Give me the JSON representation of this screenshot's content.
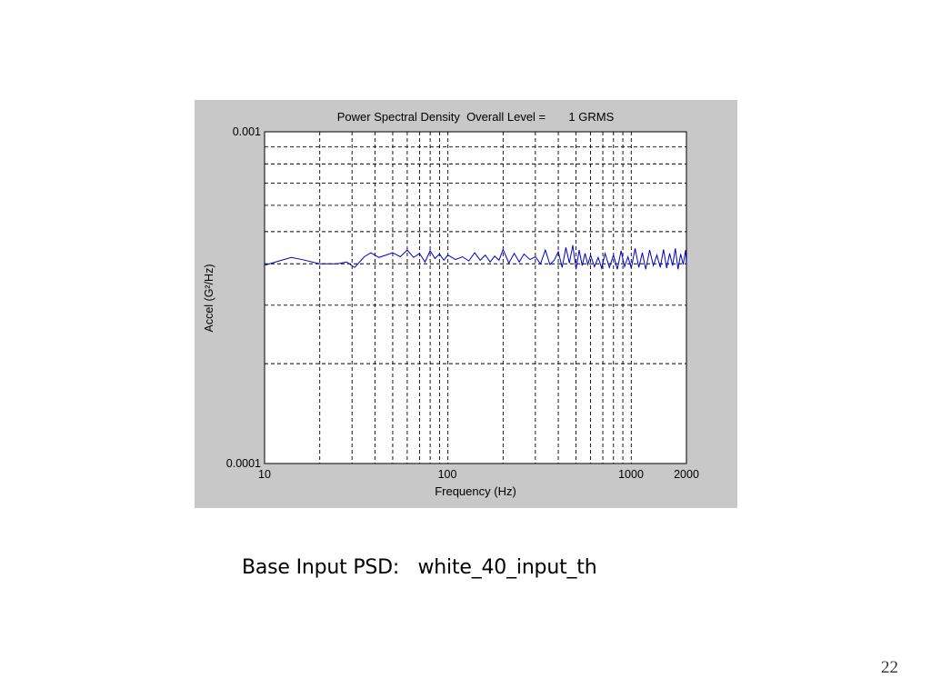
{
  "slide": {
    "caption_label": "Base Input PSD:",
    "caption_value": "white_40_input_th",
    "page_number": "22"
  },
  "colors": {
    "panel_bg": "#c8c8c8",
    "plot_bg": "#ffffff",
    "grid": "#000000",
    "series": "#0000cc"
  },
  "chart_data": {
    "type": "line",
    "title": "Power Spectral Density  Overall Level =       1 GRMS",
    "xlabel": "Frequency (Hz)",
    "ylabel": "Accel (G²/Hz)",
    "x_scale": "log",
    "y_scale": "log",
    "xlim": [
      10,
      2000
    ],
    "ylim": [
      0.0001,
      0.001
    ],
    "x_tick_labels": [
      "10",
      "100",
      "1000",
      "2000"
    ],
    "y_tick_labels": [
      "0.0001",
      "0.001"
    ],
    "grid": true,
    "legend": "none",
    "series": [
      {
        "x": [
          10,
          12,
          14,
          16,
          20,
          25,
          28,
          31,
          35,
          38,
          42,
          46,
          50,
          55,
          60,
          65,
          70,
          75,
          80,
          85,
          90,
          95,
          100,
          110,
          120,
          130,
          140,
          150,
          160,
          170,
          180,
          190,
          200,
          215,
          230,
          245,
          260,
          280,
          300,
          320,
          340,
          360,
          380,
          400,
          420,
          440,
          460,
          480,
          500,
          520,
          540,
          560,
          580,
          600,
          630,
          660,
          690,
          720,
          760,
          800,
          840,
          880,
          920,
          960,
          1000,
          1050,
          1100,
          1150,
          1200,
          1260,
          1320,
          1380,
          1440,
          1500,
          1560,
          1620,
          1680,
          1740,
          1800,
          1860,
          1920,
          1980,
          2000
        ],
        "y": [
          0.000396,
          0.000408,
          0.000418,
          0.000412,
          0.0004,
          0.0004,
          0.000405,
          0.00039,
          0.00042,
          0.000432,
          0.000418,
          0.000425,
          0.000432,
          0.00042,
          0.00044,
          0.000418,
          0.00043,
          0.000405,
          0.000438,
          0.000415,
          0.000428,
          0.00041,
          0.000425,
          0.000412,
          0.00042,
          0.000408,
          0.000432,
          0.00041,
          0.000425,
          0.000405,
          0.000422,
          0.00041,
          0.000442,
          0.000402,
          0.00043,
          0.000405,
          0.000428,
          0.000412,
          0.00042,
          0.0004,
          0.00044,
          0.000398,
          0.00041,
          0.000435,
          0.00039,
          0.000448,
          0.000402,
          0.000455,
          0.000385,
          0.00044,
          0.000395,
          0.00043,
          0.000398,
          0.000425,
          0.000392,
          0.000418,
          0.000388,
          0.00043,
          0.00039,
          0.000425,
          0.000385,
          0.000438,
          0.000392,
          0.00042,
          0.000388,
          0.000445,
          0.00039,
          0.000432,
          0.000385,
          0.00044,
          0.000395,
          0.000425,
          0.00039,
          0.000442,
          0.000388,
          0.00043,
          0.000395,
          0.000445,
          0.000385,
          0.000428,
          0.000398,
          0.00044,
          0.000398
        ]
      }
    ]
  }
}
